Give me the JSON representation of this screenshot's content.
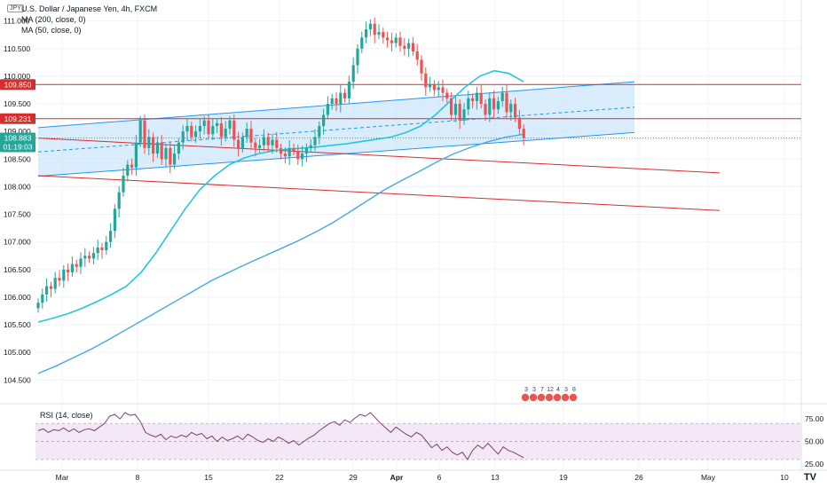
{
  "header": {
    "currency_badge": "JPY",
    "symbol_line": "U.S. Dollar / Japanese Yen, 4h, FXCM",
    "indicator_1": "MA (200, close, 0)",
    "indicator_2": "MA (50, close, 0)",
    "rsi_label": "RSI (14, close)",
    "logo": "TV"
  },
  "colors": {
    "up": "#26a69a",
    "down": "#ef5350",
    "ma50": "#26c6da",
    "ma200": "#4aa8e0",
    "channel": "#2196f3",
    "channel_fill": "#bbdefb",
    "hline": "#d32f2f",
    "rsi_line": "#7e3f6e",
    "rsi_band": "#f3e5f5",
    "last_price_bg": "#26a69a"
  },
  "chart_data": {
    "type": "candlestick",
    "price_axis": {
      "range": [
        104.2,
        111.3
      ],
      "ticks": [
        "111.000",
        "110.500",
        "110.000",
        "109.500",
        "109.000",
        "108.500",
        "108.000",
        "107.500",
        "107.000",
        "106.500",
        "106.000",
        "105.500",
        "105.000",
        "104.500"
      ],
      "tick_values": [
        111.0,
        110.5,
        110.0,
        109.5,
        109.0,
        108.5,
        108.0,
        107.5,
        107.0,
        106.5,
        106.0,
        105.5,
        105.0,
        104.5
      ]
    },
    "time_axis": {
      "labels": [
        "Mar",
        "8",
        "15",
        "22",
        "29",
        "Apr",
        "6",
        "13",
        "19",
        "26",
        "May",
        "10"
      ],
      "bold_labels": [
        "Apr"
      ]
    },
    "price_labels": {
      "hline_upper": "109.850",
      "hline_mid": "109.231",
      "last_price": "108.883",
      "countdown": "01:19:03"
    },
    "horizontal_lines": [
      109.85,
      109.231
    ],
    "last_price": 108.883,
    "channel": {
      "upper": [
        [
          0,
          109.07
        ],
        [
          140,
          109.9
        ]
      ],
      "lower": [
        [
          0,
          108.19
        ],
        [
          140,
          108.98
        ]
      ],
      "mid": [
        [
          0,
          108.63
        ],
        [
          140,
          109.44
        ]
      ]
    },
    "trendlines": [
      [
        [
          0,
          108.88
        ],
        [
          160,
          108.25
        ]
      ],
      [
        [
          0,
          108.2
        ],
        [
          160,
          107.57
        ]
      ]
    ],
    "candle_close": [
      105.9,
      106.05,
      106.2,
      106.15,
      106.35,
      106.3,
      106.5,
      106.45,
      106.6,
      106.55,
      106.7,
      106.75,
      106.7,
      106.8,
      106.9,
      106.85,
      107.0,
      107.2,
      107.6,
      107.9,
      108.2,
      108.4,
      108.35,
      108.8,
      109.2,
      108.7,
      108.9,
      108.6,
      108.8,
      108.5,
      108.7,
      108.4,
      108.6,
      108.8,
      109.0,
      109.1,
      108.9,
      109.0,
      109.1,
      109.2,
      108.95,
      109.1,
      109.15,
      108.9,
      109.05,
      109.2,
      108.85,
      108.7,
      108.9,
      109.05,
      108.8,
      108.7,
      108.75,
      108.9,
      108.75,
      108.85,
      108.7,
      108.6,
      108.55,
      108.7,
      108.65,
      108.5,
      108.6,
      108.7,
      108.75,
      108.9,
      109.1,
      109.3,
      109.5,
      109.6,
      109.5,
      109.7,
      109.6,
      109.9,
      110.2,
      110.5,
      110.7,
      110.85,
      110.95,
      110.75,
      110.8,
      110.7,
      110.65,
      110.6,
      110.7,
      110.55,
      110.5,
      110.6,
      110.45,
      110.3,
      110.05,
      109.8,
      109.85,
      109.75,
      109.8,
      109.7,
      109.6,
      109.3,
      109.5,
      109.2,
      109.4,
      109.6,
      109.55,
      109.7,
      109.5,
      109.3,
      109.6,
      109.4,
      109.55,
      109.7,
      109.35,
      109.5,
      109.25,
      109.05,
      108.883
    ],
    "ma50": [
      105.55,
      105.62,
      105.7,
      105.8,
      105.92,
      106.05,
      106.2,
      106.45,
      106.8,
      107.2,
      107.6,
      107.95,
      108.2,
      108.4,
      108.52,
      108.6,
      108.65,
      108.68,
      108.7,
      108.72,
      108.75,
      108.78,
      108.82,
      108.86,
      108.9,
      108.98,
      109.1,
      109.3,
      109.55,
      109.8,
      110.0,
      110.1,
      110.05,
      109.9
    ],
    "ma200": [
      104.62,
      104.75,
      104.9,
      105.05,
      105.22,
      105.4,
      105.58,
      105.76,
      105.94,
      106.12,
      106.3,
      106.45,
      106.6,
      106.74,
      106.88,
      107.02,
      107.18,
      107.35,
      107.55,
      107.75,
      107.95,
      108.12,
      108.28,
      108.45,
      108.6,
      108.72,
      108.82,
      108.9,
      108.95
    ],
    "rsi": {
      "levels": [
        70,
        50,
        30
      ],
      "tick_labels": [
        "75.00",
        "50.00",
        "25.00"
      ],
      "tick_values": [
        75,
        50,
        25
      ],
      "range": [
        20,
        85
      ],
      "values": [
        62,
        64,
        60,
        63,
        62,
        65,
        61,
        64,
        60,
        63,
        64,
        62,
        66,
        70,
        78,
        80,
        75,
        82,
        79,
        80,
        72,
        60,
        57,
        55,
        58,
        52,
        56,
        54,
        57,
        55,
        60,
        57,
        59,
        53,
        56,
        50,
        55,
        51,
        53,
        56,
        52,
        58,
        55,
        51,
        49,
        53,
        50,
        55,
        52,
        48,
        51,
        46,
        50,
        54,
        57,
        62,
        66,
        70,
        72,
        68,
        74,
        71,
        76,
        80,
        78,
        82,
        76,
        70,
        65,
        60,
        66,
        62,
        58,
        55,
        60,
        57,
        50,
        43,
        47,
        40,
        44,
        38,
        35,
        38,
        30,
        40,
        46,
        42,
        48,
        42,
        36,
        44,
        40,
        38,
        35,
        32
      ]
    },
    "event_flags": [
      "3",
      "3",
      "7",
      "12",
      "4",
      "3",
      "8"
    ]
  }
}
